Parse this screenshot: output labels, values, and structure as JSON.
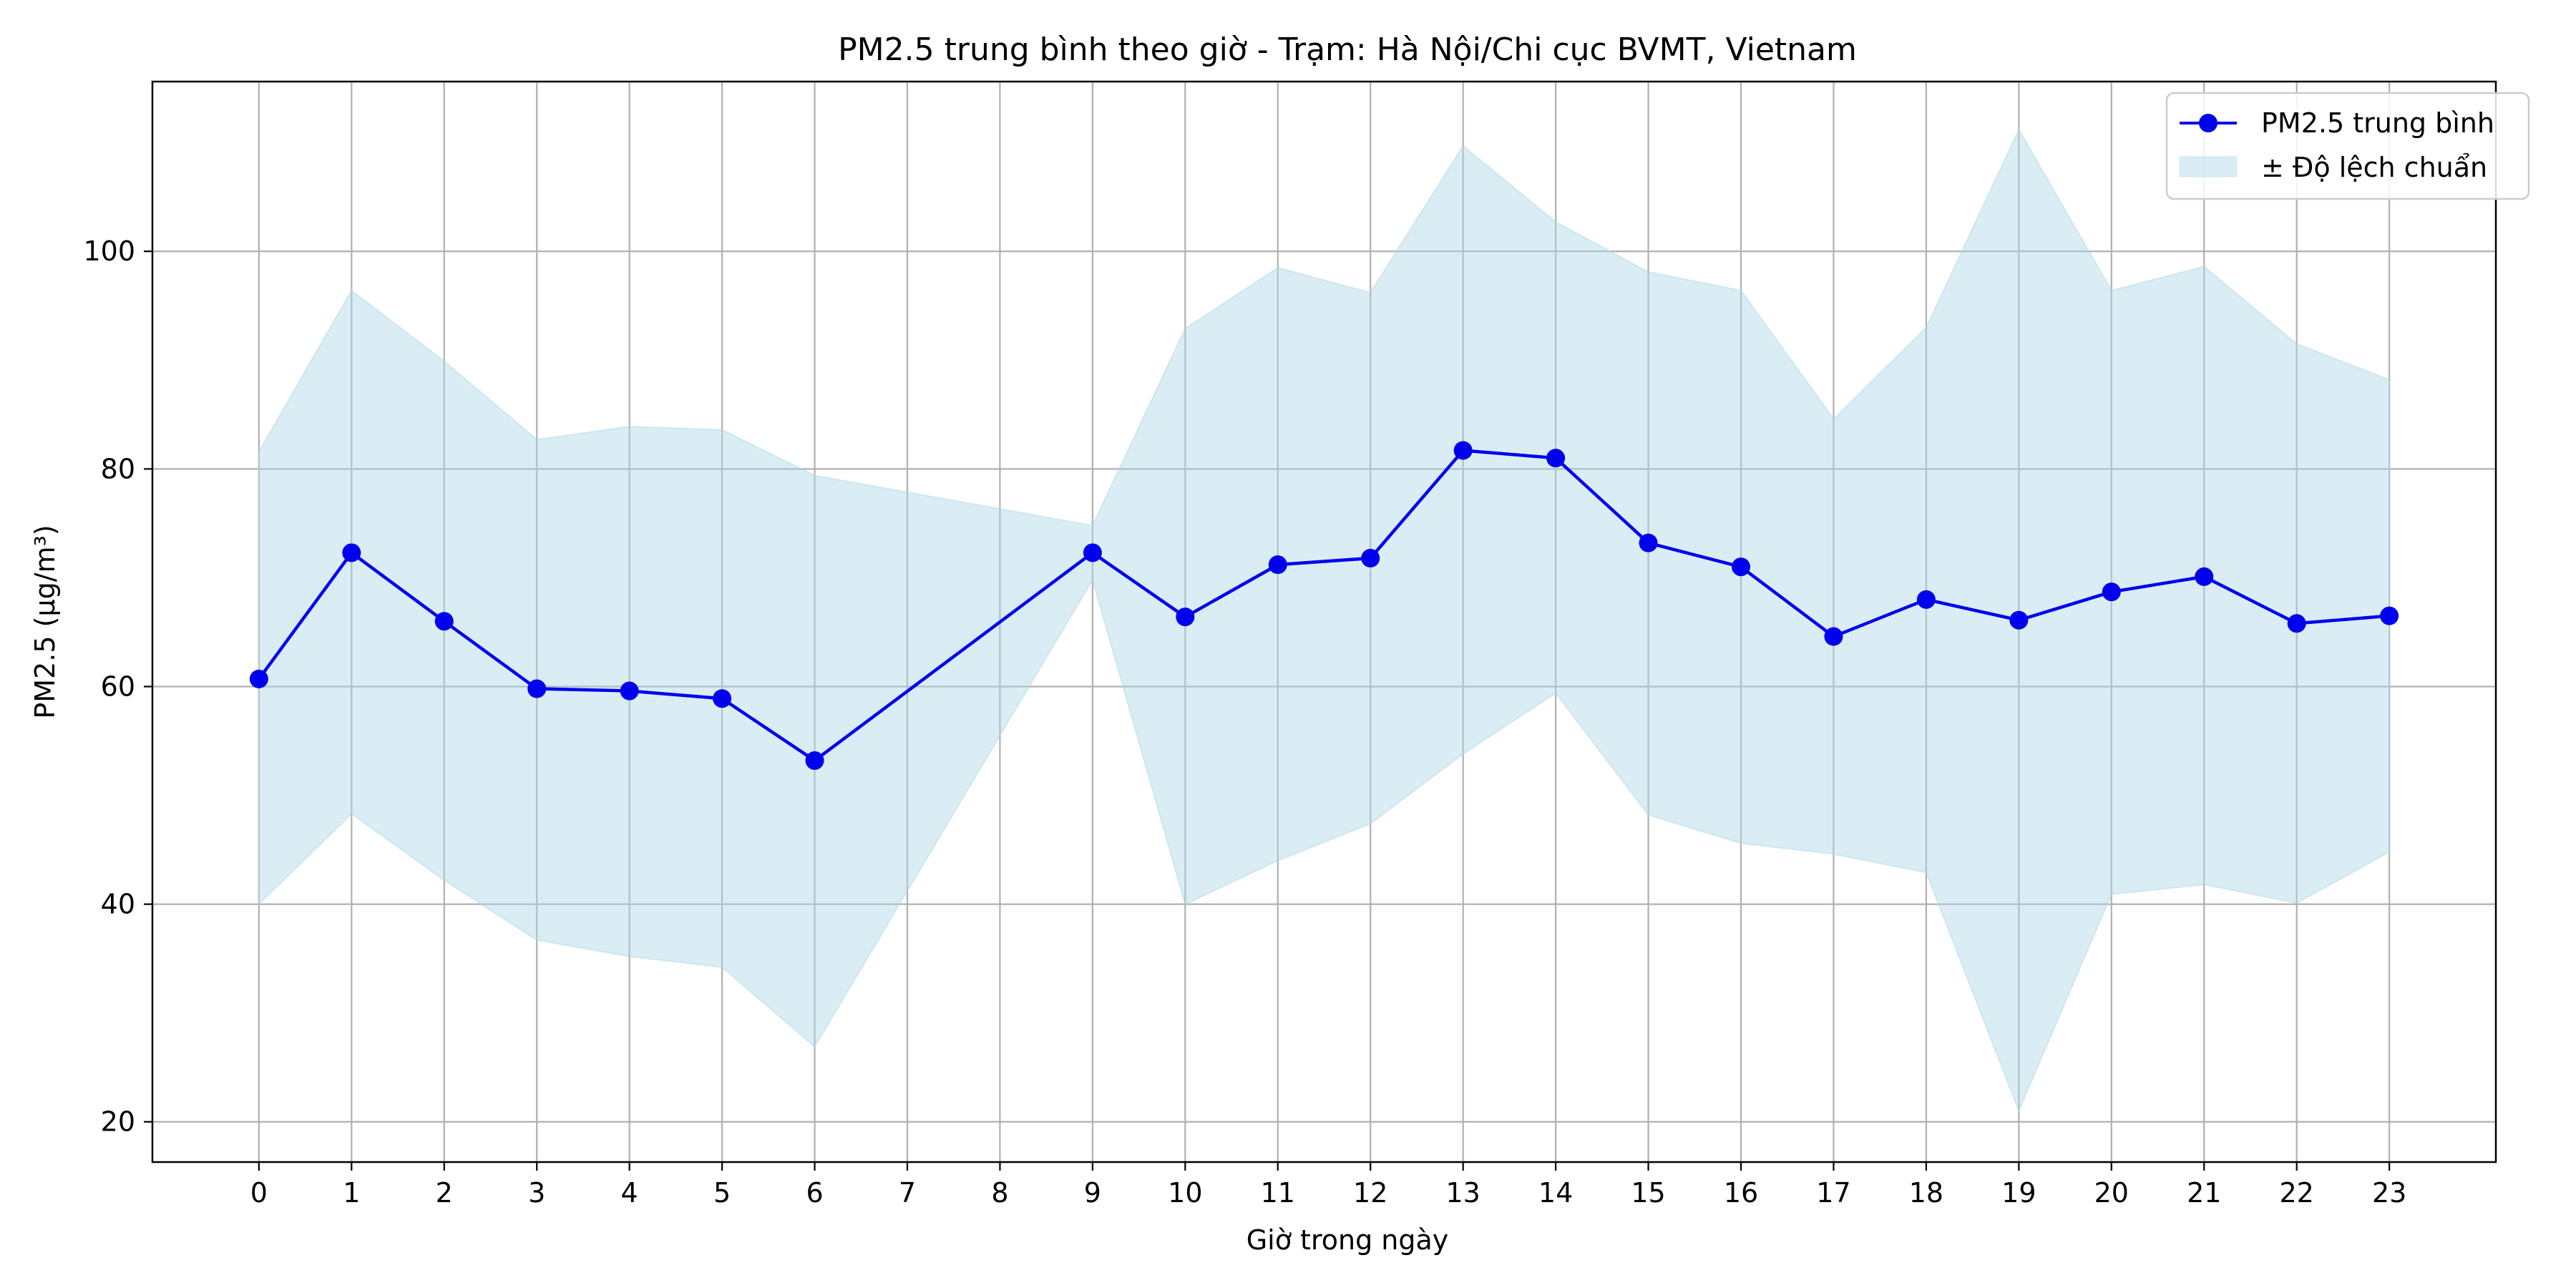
{
  "chart_data": {
    "type": "line",
    "title": "PM2.5 trung bình theo giờ - Trạm: Hà Nội/Chi cục BVMT, Vietnam",
    "xlabel": "Giờ trong ngày",
    "ylabel": "PM2.5 (µg/m³)",
    "x": [
      0,
      1,
      2,
      3,
      4,
      5,
      6,
      7,
      8,
      9,
      10,
      11,
      12,
      13,
      14,
      15,
      16,
      17,
      18,
      19,
      20,
      21,
      22,
      23
    ],
    "x_ticks": [
      "0",
      "1",
      "2",
      "3",
      "4",
      "5",
      "6",
      "7",
      "8",
      "9",
      "10",
      "11",
      "12",
      "13",
      "14",
      "15",
      "16",
      "17",
      "18",
      "19",
      "20",
      "21",
      "22",
      "23"
    ],
    "y_ticks": [
      20,
      40,
      60,
      80,
      100
    ],
    "xlim": [
      -1.15,
      24.15
    ],
    "ylim": [
      16.3,
      115.6
    ],
    "grid": true,
    "legend_position": "top-right",
    "series": [
      {
        "name": "PM2.5 trung bình",
        "color": "#0000ee",
        "marker": "circle",
        "points": [
          {
            "x": 0,
            "y": 60.7
          },
          {
            "x": 1,
            "y": 72.3
          },
          {
            "x": 2,
            "y": 66.0
          },
          {
            "x": 3,
            "y": 59.8
          },
          {
            "x": 4,
            "y": 59.6
          },
          {
            "x": 5,
            "y": 58.9
          },
          {
            "x": 6,
            "y": 53.2
          },
          {
            "x": 9,
            "y": 72.3
          },
          {
            "x": 10,
            "y": 66.4
          },
          {
            "x": 11,
            "y": 71.2
          },
          {
            "x": 12,
            "y": 71.8
          },
          {
            "x": 13,
            "y": 81.7
          },
          {
            "x": 14,
            "y": 81.0
          },
          {
            "x": 15,
            "y": 73.2
          },
          {
            "x": 16,
            "y": 71.0
          },
          {
            "x": 17,
            "y": 64.6
          },
          {
            "x": 18,
            "y": 68.0
          },
          {
            "x": 19,
            "y": 66.1
          },
          {
            "x": 20,
            "y": 68.7
          },
          {
            "x": 21,
            "y": 70.1
          },
          {
            "x": 22,
            "y": 65.8
          },
          {
            "x": 23,
            "y": 66.5
          }
        ]
      }
    ],
    "band": {
      "name": "± Độ lệch chuẩn",
      "color": "#add8e6",
      "opacity": 0.45,
      "upper": [
        {
          "x": 0,
          "y": 81.6
        },
        {
          "x": 1,
          "y": 96.4
        },
        {
          "x": 2,
          "y": 89.9
        },
        {
          "x": 3,
          "y": 82.7
        },
        {
          "x": 4,
          "y": 83.9
        },
        {
          "x": 5,
          "y": 83.6
        },
        {
          "x": 6,
          "y": 79.4
        },
        {
          "x": 9,
          "y": 74.8
        },
        {
          "x": 10,
          "y": 92.9
        },
        {
          "x": 11,
          "y": 98.5
        },
        {
          "x": 12,
          "y": 96.2
        },
        {
          "x": 13,
          "y": 109.7
        },
        {
          "x": 14,
          "y": 102.7
        },
        {
          "x": 15,
          "y": 98.1
        },
        {
          "x": 16,
          "y": 96.4
        },
        {
          "x": 17,
          "y": 84.6
        },
        {
          "x": 18,
          "y": 93.0
        },
        {
          "x": 19,
          "y": 111.2
        },
        {
          "x": 20,
          "y": 96.4
        },
        {
          "x": 21,
          "y": 98.6
        },
        {
          "x": 22,
          "y": 91.5
        },
        {
          "x": 23,
          "y": 88.2
        }
      ],
      "lower": [
        {
          "x": 0,
          "y": 40.0
        },
        {
          "x": 1,
          "y": 48.3
        },
        {
          "x": 2,
          "y": 42.2
        },
        {
          "x": 3,
          "y": 36.7
        },
        {
          "x": 4,
          "y": 35.2
        },
        {
          "x": 5,
          "y": 34.2
        },
        {
          "x": 6,
          "y": 26.9
        },
        {
          "x": 9,
          "y": 69.8
        },
        {
          "x": 10,
          "y": 40.0
        },
        {
          "x": 11,
          "y": 44.0
        },
        {
          "x": 12,
          "y": 47.4
        },
        {
          "x": 13,
          "y": 53.8
        },
        {
          "x": 14,
          "y": 59.4
        },
        {
          "x": 15,
          "y": 48.2
        },
        {
          "x": 16,
          "y": 45.6
        },
        {
          "x": 17,
          "y": 44.6
        },
        {
          "x": 18,
          "y": 42.9
        },
        {
          "x": 19,
          "y": 21.0
        },
        {
          "x": 20,
          "y": 40.9
        },
        {
          "x": 21,
          "y": 41.8
        },
        {
          "x": 22,
          "y": 40.1
        },
        {
          "x": 23,
          "y": 44.8
        }
      ]
    }
  }
}
